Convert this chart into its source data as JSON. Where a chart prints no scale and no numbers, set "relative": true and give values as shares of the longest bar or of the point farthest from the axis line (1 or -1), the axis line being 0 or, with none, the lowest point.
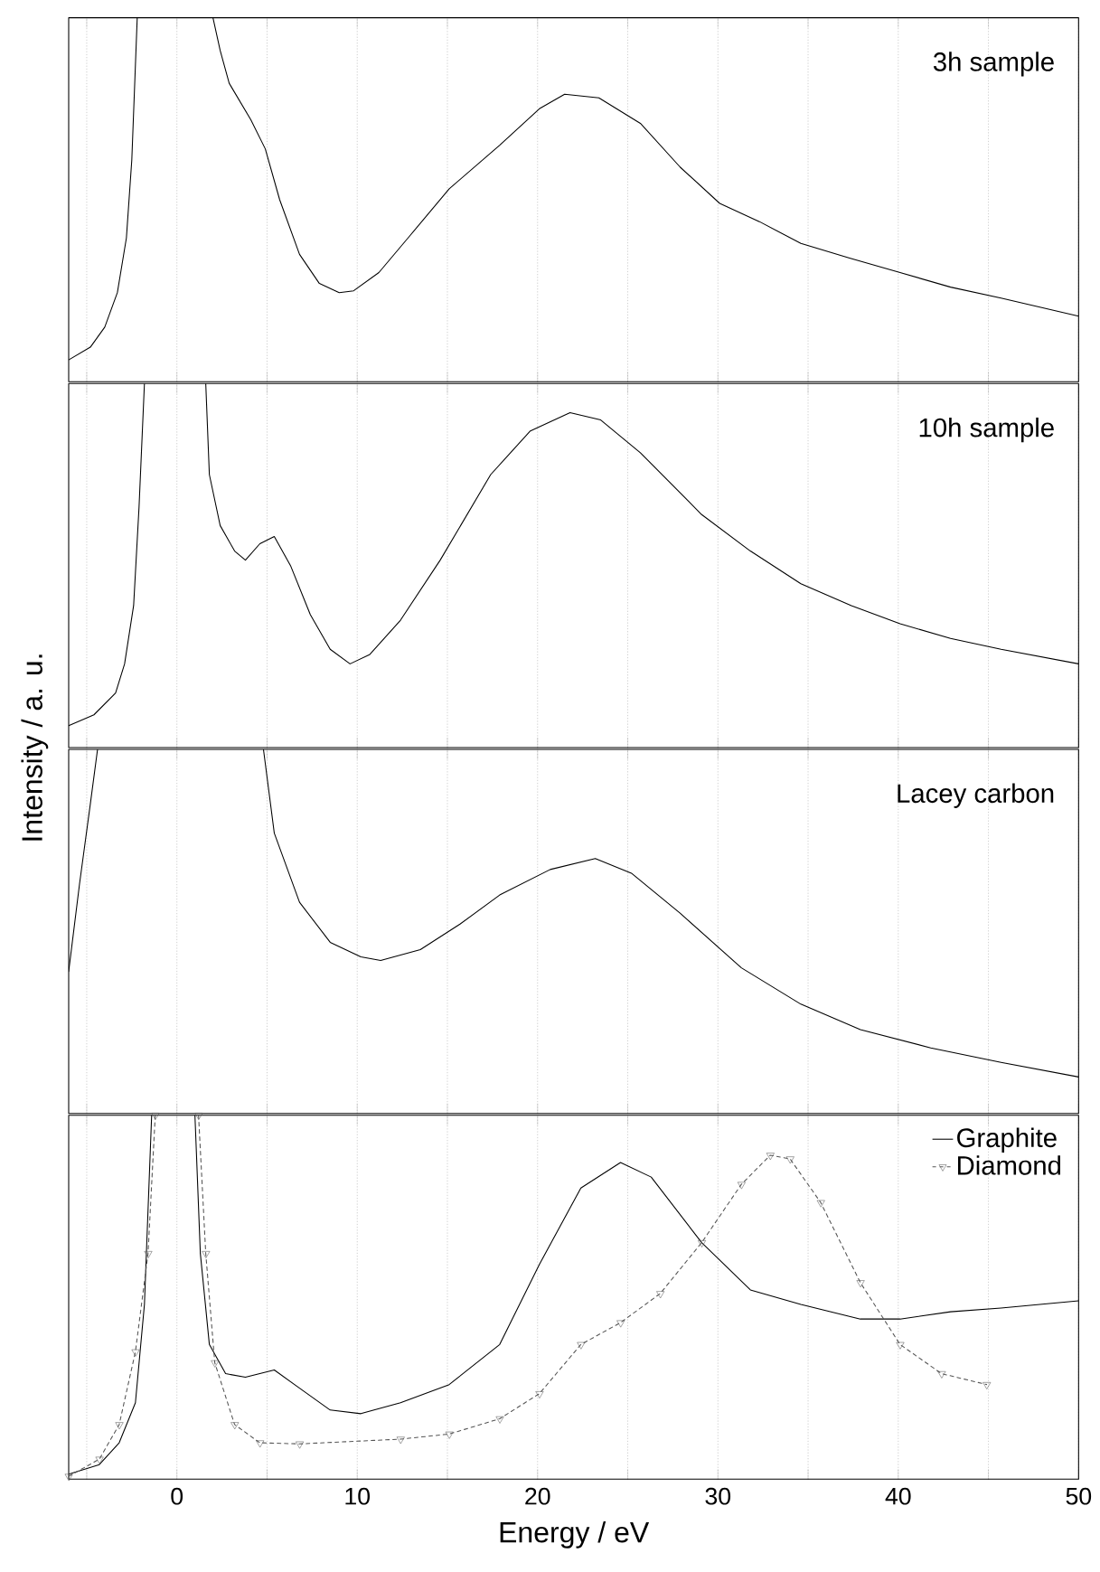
{
  "chart_data": [
    {
      "type": "line",
      "relative": true,
      "annotations": [
        "3h sample"
      ],
      "xlim": [
        -6,
        50
      ],
      "xticks": [
        {
          "value": -5,
          "label": null
        },
        0,
        {
          "value": 5,
          "label": null
        },
        10,
        {
          "value": 15,
          "label": null
        },
        20,
        {
          "value": 25,
          "label": null
        },
        30,
        {
          "value": 35,
          "label": null
        },
        40,
        {
          "value": 45,
          "label": null
        },
        50
      ],
      "grid": "x",
      "tick_labels": false,
      "series": [
        {
          "color": "#000000",
          "x": [
            -6,
            -4.8,
            -4,
            -3.3,
            -2.8,
            -2.5,
            -2.2,
            0,
            2.0,
            2.4,
            2.9,
            4.1,
            4.9,
            5.7,
            6.8,
            7.9,
            9.0,
            9.8,
            11.2,
            12.9,
            15.1,
            17.9,
            20.1,
            21.5,
            23.4,
            25.7,
            27.9,
            30.1,
            32.3,
            34.6,
            37.3,
            40.1,
            42.9,
            45.7,
            50
          ],
          "values": [
            0.06,
            0.095,
            0.15,
            0.245,
            0.395,
            0.61,
            1.0,
            null,
            1.0,
            0.91,
            0.82,
            0.72,
            0.64,
            0.5,
            0.35,
            0.27,
            0.245,
            0.25,
            0.3,
            0.4,
            0.53,
            0.65,
            0.75,
            0.79,
            0.78,
            0.71,
            0.59,
            0.49,
            0.44,
            0.38,
            0.34,
            0.3,
            0.26,
            0.23,
            0.18
          ]
        }
      ]
    },
    {
      "type": "line",
      "relative": true,
      "annotations": [
        "10h sample"
      ],
      "ylabel": "Intensity / a. u.",
      "xlim": [
        -6,
        50
      ],
      "xticks": [
        {
          "value": -5,
          "label": null
        },
        0,
        {
          "value": 5,
          "label": null
        },
        10,
        {
          "value": 15,
          "label": null
        },
        20,
        {
          "value": 25,
          "label": null
        },
        30,
        {
          "value": 35,
          "label": null
        },
        40,
        {
          "value": 45,
          "label": null
        },
        50
      ],
      "grid": "x",
      "tick_labels": false,
      "series": [
        {
          "color": "#000000",
          "x": [
            -6,
            -4.6,
            -3.4,
            -2.9,
            -2.4,
            -2.1,
            -1.8,
            0,
            1.6,
            1.8,
            2.4,
            3.2,
            3.8,
            4.6,
            5.4,
            6.3,
            7.4,
            8.5,
            9.6,
            10.7,
            12.4,
            14.6,
            17.4,
            19.6,
            21.8,
            23.5,
            25.7,
            29.1,
            31.8,
            34.6,
            37.4,
            40.1,
            42.9,
            45.7,
            50
          ],
          "values": [
            0.06,
            0.09,
            0.15,
            0.23,
            0.39,
            0.66,
            1.0,
            null,
            1.0,
            0.75,
            0.61,
            0.54,
            0.515,
            0.56,
            0.58,
            0.5,
            0.365,
            0.27,
            0.23,
            0.256,
            0.35,
            0.515,
            0.75,
            0.87,
            0.92,
            0.9,
            0.81,
            0.64,
            0.54,
            0.45,
            0.39,
            0.34,
            0.3,
            0.27,
            0.23
          ]
        }
      ]
    },
    {
      "type": "line",
      "relative": true,
      "annotations": [
        "Lacey carbon"
      ],
      "xlim": [
        -6,
        50
      ],
      "xticks": [
        {
          "value": -5,
          "label": null
        },
        0,
        {
          "value": 5,
          "label": null
        },
        10,
        {
          "value": 15,
          "label": null
        },
        20,
        {
          "value": 25,
          "label": null
        },
        30,
        {
          "value": 35,
          "label": null
        },
        40,
        {
          "value": 45,
          "label": null
        },
        50
      ],
      "grid": "x",
      "tick_labels": false,
      "series": [
        {
          "color": "#000000",
          "x": [
            -6,
            -5.4,
            -4.8,
            -4.4,
            0,
            4.8,
            5.4,
            6.8,
            8.5,
            10.2,
            11.3,
            13.5,
            15.7,
            17.9,
            20.7,
            23.2,
            25.2,
            27.9,
            31.3,
            34.6,
            37.9,
            41.8,
            45.7,
            50
          ],
          "values": [
            0.39,
            0.63,
            0.85,
            1.0,
            null,
            1.0,
            0.77,
            0.58,
            0.47,
            0.43,
            0.42,
            0.45,
            0.52,
            0.6,
            0.67,
            0.7,
            0.66,
            0.55,
            0.4,
            0.3,
            0.23,
            0.18,
            0.14,
            0.1
          ]
        }
      ]
    },
    {
      "type": "line",
      "relative": true,
      "xlabel": "Energy / eV",
      "legend": "top right",
      "xlim": [
        -6,
        50
      ],
      "xticks": [
        {
          "value": -5,
          "label": null
        },
        0,
        {
          "value": 5,
          "label": null
        },
        10,
        {
          "value": 15,
          "label": null
        },
        20,
        {
          "value": 25,
          "label": null
        },
        30,
        {
          "value": 35,
          "label": null
        },
        40,
        {
          "value": 45,
          "label": null
        },
        50
      ],
      "grid": "x",
      "tick_labels": "x",
      "series": [
        {
          "name": "Graphite",
          "color": "#000000",
          "marker": "none",
          "line_style": "solid",
          "x": [
            -6,
            -4.3,
            -3.2,
            -2.3,
            -1.8,
            -1.4,
            0,
            1.0,
            1.3,
            1.8,
            2.7,
            3.8,
            5.4,
            6.8,
            8.5,
            10.2,
            12.4,
            15.1,
            17.9,
            20.1,
            22.4,
            24.6,
            26.3,
            29.1,
            31.8,
            34.6,
            37.9,
            40.1,
            42.9,
            45.7,
            50
          ],
          "values": [
            0.014,
            0.04,
            0.1,
            0.21,
            0.48,
            1.0,
            null,
            1.0,
            0.62,
            0.37,
            0.29,
            0.28,
            0.3,
            0.25,
            0.19,
            0.18,
            0.21,
            0.26,
            0.37,
            0.59,
            0.8,
            0.87,
            0.83,
            0.65,
            0.52,
            0.48,
            0.44,
            0.44,
            0.46,
            0.47,
            0.49
          ]
        },
        {
          "name": "Diamond",
          "color": "#555555",
          "marker": "triangle",
          "line_style": "dashed",
          "x": [
            -6,
            -4.3,
            -3.2,
            -2.3,
            -1.6,
            -1.2,
            0,
            1.2,
            1.6,
            2.1,
            3.2,
            4.6,
            6.8,
            12.4,
            15.1,
            17.9,
            20.1,
            22.4,
            24.6,
            26.8,
            29.1,
            31.3,
            32.9,
            34.0,
            35.7,
            37.9,
            40.1,
            42.4,
            44.9
          ],
          "values": [
            0.008,
            0.055,
            0.15,
            0.35,
            0.62,
            1.0,
            null,
            1.0,
            0.62,
            0.32,
            0.15,
            0.1,
            0.097,
            0.11,
            0.124,
            0.166,
            0.235,
            0.37,
            0.43,
            0.51,
            0.65,
            0.81,
            0.89,
            0.88,
            0.76,
            0.54,
            0.37,
            0.29,
            0.26
          ]
        }
      ]
    }
  ]
}
